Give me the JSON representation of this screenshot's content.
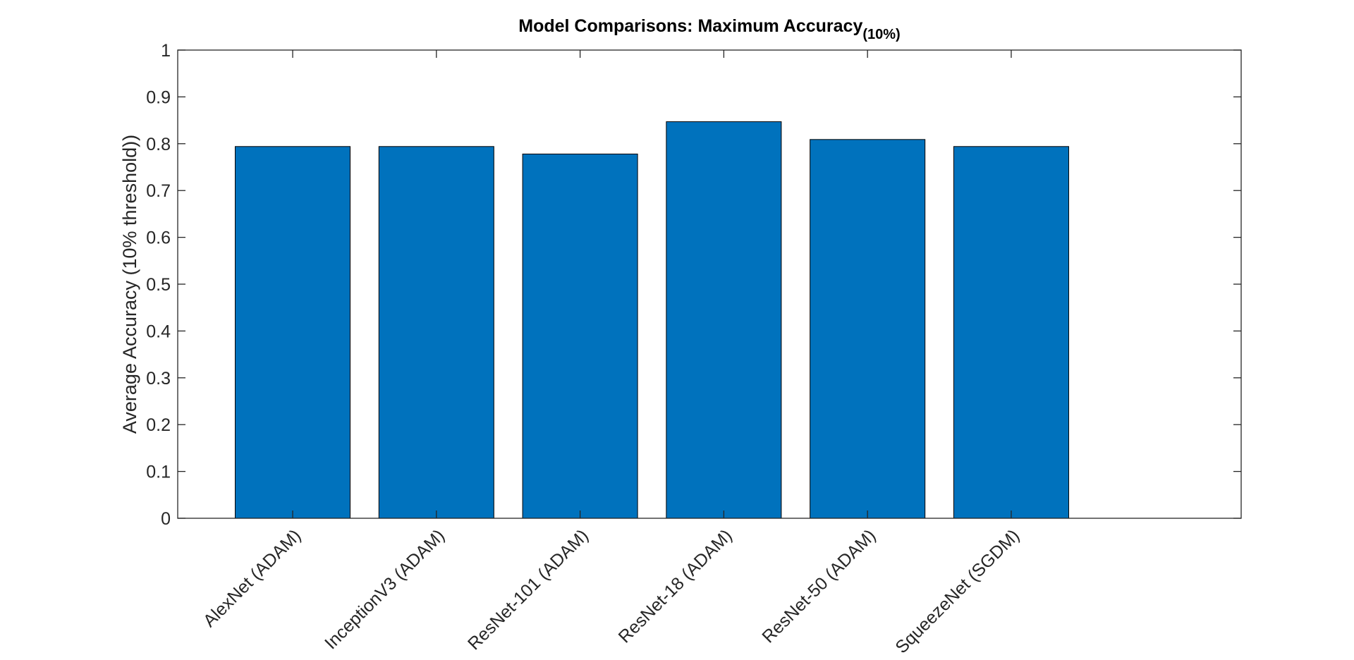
{
  "chart_data": {
    "type": "bar",
    "title": "Model Comparisons: Maximum Accuracy",
    "title_subscript": "(10%)",
    "xlabel": "",
    "ylabel": "Average Accuracy (10% threshold))",
    "categories": [
      "AlexNet (ADAM)",
      "InceptionV3 (ADAM)",
      "ResNet-101 (ADAM)",
      "ResNet-18 (ADAM)",
      "ResNet-50 (ADAM)",
      "SqueezeNet (SGDM)"
    ],
    "values": [
      0.794,
      0.794,
      0.778,
      0.847,
      0.809,
      0.794
    ],
    "ylim": [
      0,
      1
    ],
    "xlim": [
      0.2,
      7.6
    ],
    "yticks": [
      0,
      0.1,
      0.2,
      0.3,
      0.4,
      0.5,
      0.6,
      0.7,
      0.8,
      0.9,
      1
    ],
    "ytick_labels": [
      "0",
      "0.1",
      "0.2",
      "0.3",
      "0.4",
      "0.5",
      "0.6",
      "0.7",
      "0.8",
      "0.9",
      "1"
    ],
    "x_tick_rotation": 45,
    "bar_width": 0.8,
    "grid": false,
    "legend": "none",
    "colors": {
      "bar_fill": "#0072BD",
      "bar_edge": "#000000",
      "axis": "#262626",
      "background": "#ffffff"
    }
  }
}
